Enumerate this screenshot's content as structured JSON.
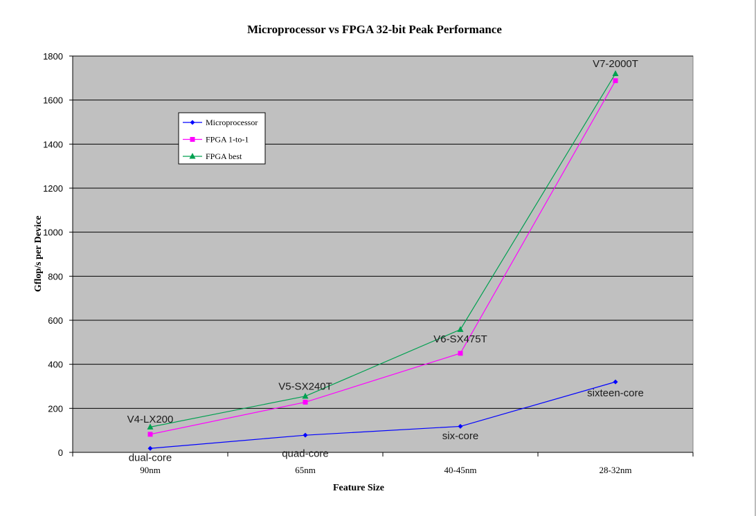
{
  "chart_data": {
    "type": "line",
    "title": "Microprocessor vs FPGA 32-bit Peak Performance",
    "xlabel": "Feature Size",
    "ylabel": "Gflop/s per Device",
    "categories": [
      "90nm",
      "65nm",
      "40-45nm",
      "28-32nm"
    ],
    "ylim": [
      0,
      1800
    ],
    "yticks": [
      0,
      200,
      400,
      600,
      800,
      1000,
      1200,
      1400,
      1600,
      1800
    ],
    "grid": true,
    "legend_position": "top-left",
    "plot_background": "#c0c0c0",
    "series": [
      {
        "name": "Microprocessor",
        "values": [
          18,
          78,
          118,
          320
        ],
        "color": "#0000ff",
        "marker": "diamond"
      },
      {
        "name": "FPGA 1-to-1",
        "values": [
          82,
          228,
          450,
          1688
        ],
        "color": "#ff00ff",
        "marker": "square"
      },
      {
        "name": "FPGA best",
        "values": [
          115,
          255,
          558,
          1720
        ],
        "color": "#00a050",
        "marker": "triangle"
      }
    ],
    "annotations": [
      {
        "text": "dual-core",
        "category": 0,
        "y": -40
      },
      {
        "text": "quad-core",
        "category": 1,
        "y": -20
      },
      {
        "text": "six-core",
        "category": 2,
        "y": 60
      },
      {
        "text": "sixteen-core",
        "category": 3,
        "y": 255
      },
      {
        "text": "V4-LX200",
        "category": 0,
        "y": 135
      },
      {
        "text": "V5-SX240T",
        "category": 1,
        "y": 285
      },
      {
        "text": "V6-SX475T",
        "category": 2,
        "y": 500
      },
      {
        "text": "V7-2000T",
        "category": 3,
        "y": 1750
      }
    ]
  }
}
